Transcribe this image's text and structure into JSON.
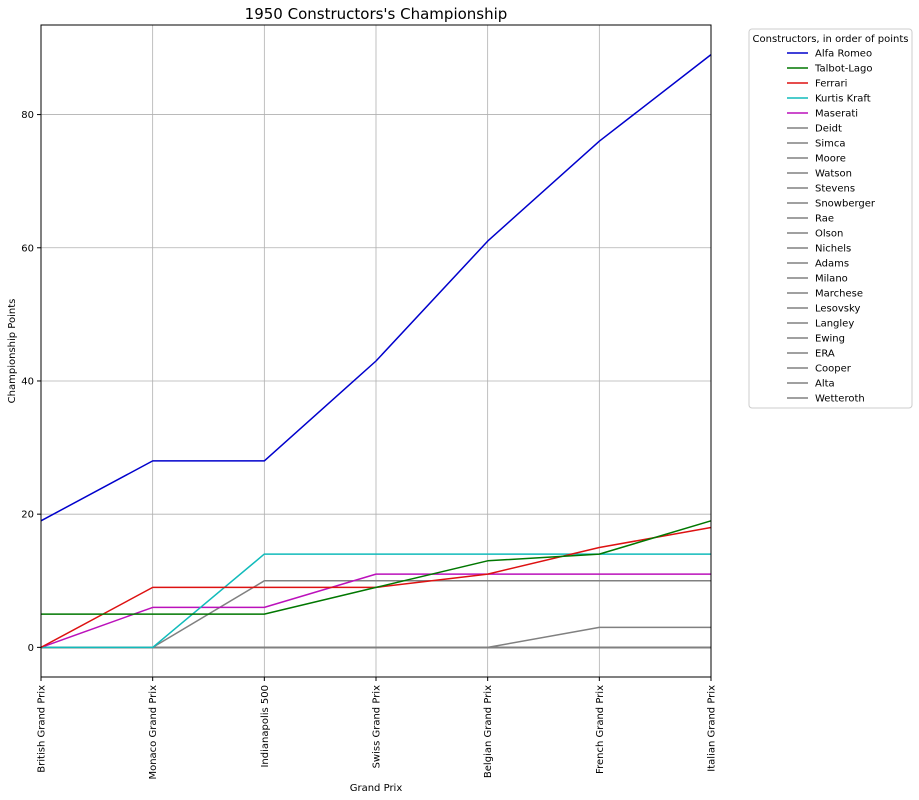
{
  "chart_data": {
    "type": "line",
    "title": "1950 Constructors's Championship",
    "xlabel": "Grand Prix",
    "ylabel": "Championship Points",
    "categories": [
      "British Grand Prix",
      "Monaco Grand Prix",
      "Indianapolis 500",
      "Swiss Grand Prix",
      "Belgian Grand Prix",
      "French Grand Prix",
      "Italian Grand Prix"
    ],
    "yticks": [
      0,
      20,
      40,
      60,
      80
    ],
    "ylim": [
      -4.45,
      93.45
    ],
    "grid": true,
    "legend": {
      "title": "Constructors, in order of points",
      "placement": "outside-right"
    },
    "series": [
      {
        "name": "Alfa Romeo",
        "color": "#0000cc",
        "values": [
          19,
          28,
          28,
          43,
          61,
          76,
          89
        ]
      },
      {
        "name": "Talbot-Lago",
        "color": "#007700",
        "values": [
          5,
          5,
          5,
          9,
          13,
          14,
          19
        ]
      },
      {
        "name": "Ferrari",
        "color": "#dd1111",
        "values": [
          0,
          9,
          9,
          9,
          11,
          15,
          18
        ]
      },
      {
        "name": "Kurtis Kraft",
        "color": "#11bbbb",
        "values": [
          0,
          0,
          14,
          14,
          14,
          14,
          14
        ]
      },
      {
        "name": "Maserati",
        "color": "#bb11bb",
        "values": [
          0,
          6,
          6,
          11,
          11,
          11,
          11
        ]
      },
      {
        "name": "Deidt",
        "color": "#808080",
        "values": [
          0,
          0,
          10,
          10,
          10,
          10,
          10
        ]
      },
      {
        "name": "Simca",
        "color": "#808080",
        "values": [
          0,
          0,
          0,
          0,
          0,
          3,
          3
        ]
      },
      {
        "name": "Moore",
        "color": "#808080",
        "values": [
          0,
          0,
          0,
          0,
          0,
          0,
          0
        ]
      },
      {
        "name": "Watson",
        "color": "#808080",
        "values": [
          0,
          0,
          0,
          0,
          0,
          0,
          0
        ]
      },
      {
        "name": "Stevens",
        "color": "#808080",
        "values": [
          0,
          0,
          0,
          0,
          0,
          0,
          0
        ]
      },
      {
        "name": "Snowberger",
        "color": "#808080",
        "values": [
          0,
          0,
          0,
          0,
          0,
          0,
          0
        ]
      },
      {
        "name": "Rae",
        "color": "#808080",
        "values": [
          0,
          0,
          0,
          0,
          0,
          0,
          0
        ]
      },
      {
        "name": "Olson",
        "color": "#808080",
        "values": [
          0,
          0,
          0,
          0,
          0,
          0,
          0
        ]
      },
      {
        "name": "Nichels",
        "color": "#808080",
        "values": [
          0,
          0,
          0,
          0,
          0,
          0,
          0
        ]
      },
      {
        "name": "Adams",
        "color": "#808080",
        "values": [
          0,
          0,
          0,
          0,
          0,
          0,
          0
        ]
      },
      {
        "name": "Milano",
        "color": "#808080",
        "values": [
          0,
          0,
          0,
          0,
          0,
          0,
          0
        ]
      },
      {
        "name": "Marchese",
        "color": "#808080",
        "values": [
          0,
          0,
          0,
          0,
          0,
          0,
          0
        ]
      },
      {
        "name": "Lesovsky",
        "color": "#808080",
        "values": [
          0,
          0,
          0,
          0,
          0,
          0,
          0
        ]
      },
      {
        "name": "Langley",
        "color": "#808080",
        "values": [
          0,
          0,
          0,
          0,
          0,
          0,
          0
        ]
      },
      {
        "name": "Ewing",
        "color": "#808080",
        "values": [
          0,
          0,
          0,
          0,
          0,
          0,
          0
        ]
      },
      {
        "name": "ERA",
        "color": "#808080",
        "values": [
          0,
          0,
          0,
          0,
          0,
          0,
          0
        ]
      },
      {
        "name": "Cooper",
        "color": "#808080",
        "values": [
          0,
          0,
          0,
          0,
          0,
          0,
          0
        ]
      },
      {
        "name": "Alta",
        "color": "#808080",
        "values": [
          0,
          0,
          0,
          0,
          0,
          0,
          0
        ]
      },
      {
        "name": "Wetteroth",
        "color": "#808080",
        "values": [
          0,
          0,
          0,
          0,
          0,
          0,
          0
        ]
      }
    ]
  }
}
